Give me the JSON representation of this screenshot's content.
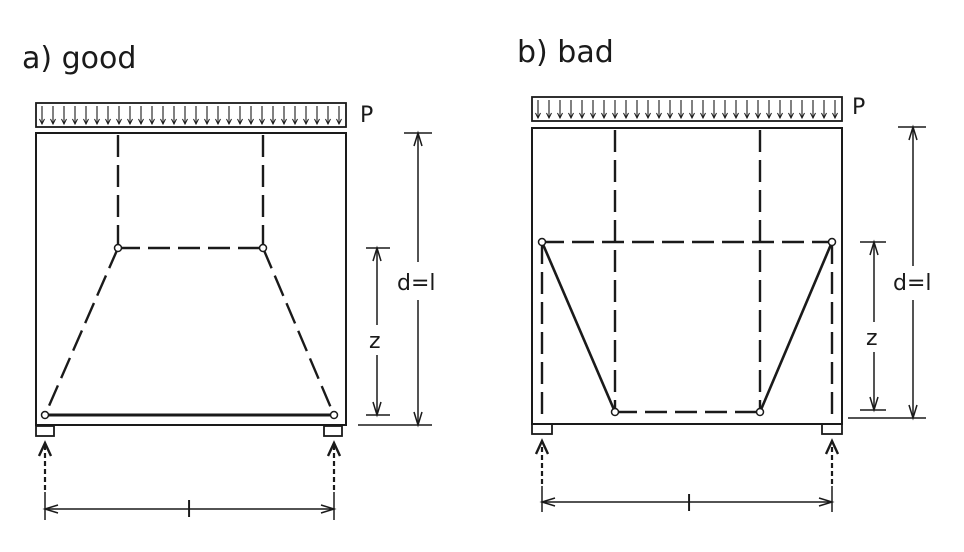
{
  "panels": [
    {
      "id": "a",
      "title": "a)  good",
      "load_label": "P",
      "height_label": "d=l",
      "lever_label": "z",
      "span_label": "l"
    },
    {
      "id": "b",
      "title": "b)   bad",
      "load_label": "P",
      "height_label": "d=l",
      "lever_label": "z",
      "span_label": "l"
    }
  ],
  "colors": {
    "ink": "#1a1a1a",
    "background": "#ffffff"
  }
}
